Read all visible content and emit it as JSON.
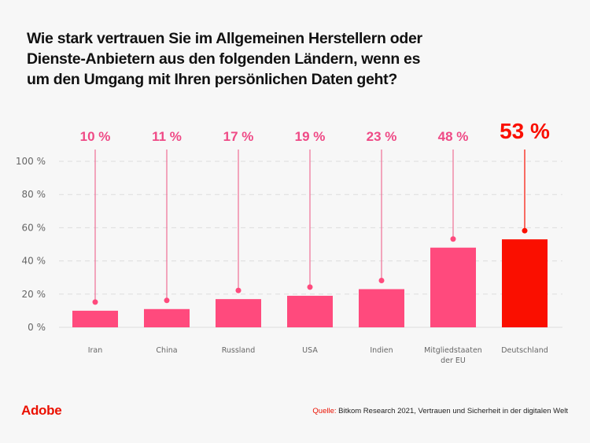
{
  "title_lines": [
    "Wie stark vertrauen Sie im Allgemeinen Herstellern oder",
    "Dienste-Anbietern aus den folgenden Ländern, wenn es",
    "um den Umgang mit Ihren persönlichen Daten geht?"
  ],
  "colors": {
    "bar": "#ff4a7d",
    "highlight": "#fa0f00",
    "stem": "#ef6f96",
    "grid": "#dddddd"
  },
  "chart_data": {
    "type": "bar",
    "title": "Wie stark vertrauen Sie im Allgemeinen Herstellern oder Dienste-Anbietern aus den folgenden Ländern, wenn es um den Umgang mit Ihren persönlichen Daten geht?",
    "xlabel": "",
    "ylabel": "",
    "categories": [
      "Iran",
      "China",
      "Russland",
      "USA",
      "Indien",
      "Mitgliedstaaten der EU",
      "Deutschland"
    ],
    "category_lines": [
      [
        "Iran"
      ],
      [
        "China"
      ],
      [
        "Russland"
      ],
      [
        "USA"
      ],
      [
        "Indien"
      ],
      [
        "Mitgliedstaaten",
        "der EU"
      ],
      [
        "Deutschland"
      ]
    ],
    "values": [
      10,
      11,
      17,
      19,
      23,
      48,
      53
    ],
    "value_labels": [
      "10 %",
      "11 %",
      "17 %",
      "19 %",
      "23 %",
      "48 %",
      "53 %"
    ],
    "highlight_index": 6,
    "ylim": [
      0,
      100
    ],
    "yticks": [
      0,
      20,
      40,
      60,
      80,
      100
    ],
    "ytick_labels": [
      "0 %",
      "20 %",
      "40 %",
      "60 %",
      "80 %",
      "100 %"
    ],
    "grid": true,
    "legend": "none"
  },
  "footer": {
    "logo": "Adobe",
    "source_key": "Quelle:",
    "source_text": " Bitkom Research 2021, Vertrauen und Sicherheit in der digitalen Welt"
  }
}
